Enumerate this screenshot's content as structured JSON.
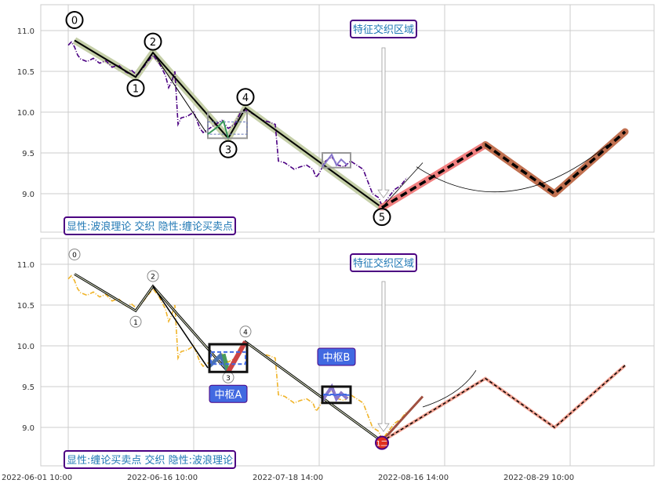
{
  "chart_data": [
    {
      "type": "line",
      "panel": "top",
      "ylim": [
        8.53,
        11.32
      ],
      "yticks": [
        9.0,
        9.5,
        10.0,
        10.5,
        11.0
      ],
      "grid": true,
      "price_color": "#4b0082",
      "price": {
        "x": [
          0,
          1,
          2,
          3,
          4,
          6,
          8,
          10,
          12,
          14,
          16,
          18,
          19,
          20,
          22,
          24,
          27,
          29,
          31,
          32,
          33,
          34,
          35,
          36,
          38,
          40,
          42,
          43,
          45,
          47,
          49,
          51,
          53,
          55,
          56,
          58,
          60,
          62,
          64,
          66,
          67,
          69,
          72,
          74,
          76,
          78,
          79,
          80,
          82,
          84,
          86,
          88,
          90,
          92,
          94,
          96,
          97,
          99,
          100,
          102,
          104,
          106,
          108
        ],
        "y": [
          10.82,
          10.86,
          10.8,
          10.7,
          10.65,
          10.62,
          10.66,
          10.6,
          10.63,
          10.55,
          10.58,
          10.5,
          10.48,
          10.52,
          10.45,
          10.55,
          10.7,
          10.6,
          10.45,
          10.3,
          10.38,
          10.5,
          9.85,
          9.93,
          9.95,
          10.0,
          9.8,
          9.75,
          9.8,
          9.85,
          9.9,
          9.8,
          9.85,
          10.0,
          10.03,
          10.0,
          9.95,
          9.9,
          9.88,
          9.85,
          9.4,
          9.38,
          9.3,
          9.33,
          9.35,
          9.3,
          9.2,
          9.25,
          9.4,
          9.45,
          9.35,
          9.33,
          9.4,
          9.35,
          9.3,
          9.1,
          9.0,
          8.95,
          8.85,
          8.95,
          9.05,
          9.1,
          9.2
        ]
      },
      "wave_points": [
        {
          "label": "0",
          "x": 2,
          "y": 10.88
        },
        {
          "label": "1",
          "x": 21.5,
          "y": 10.43
        },
        {
          "label": "2",
          "x": 27,
          "y": 10.73
        },
        {
          "label": "3",
          "x": 51,
          "y": 9.68
        },
        {
          "label": "4",
          "x": 56.5,
          "y": 10.05
        },
        {
          "label": "5",
          "x": 100,
          "y": 8.83
        }
      ],
      "projection": {
        "x": [
          100,
          133,
          155,
          177.5
        ],
        "y": [
          8.83,
          9.6,
          9.0,
          9.76
        ]
      },
      "annotation": "特征交织区域",
      "legend_box": "显性:波浪理论 交织 隐性:缠论买卖点"
    },
    {
      "type": "line",
      "panel": "bottom",
      "ylim": [
        8.53,
        11.32
      ],
      "yticks": [
        9.0,
        9.5,
        10.0,
        10.5,
        11.0
      ],
      "xticks": [
        "2022-06-01 10:00",
        "2022-06-16 10:00",
        "2022-07-18 14:00",
        "2022-08-16 14:00",
        "2022-08-29 10:00"
      ],
      "grid": true,
      "price_color": "#f0b429",
      "wave_points": [
        {
          "label": "0",
          "x": 2,
          "y": 10.88
        },
        {
          "label": "1",
          "x": 21.5,
          "y": 10.43
        },
        {
          "label": "2",
          "x": 27,
          "y": 10.73
        },
        {
          "label": "3",
          "x": 51,
          "y": 9.68
        },
        {
          "label": "4",
          "x": 56.5,
          "y": 10.05
        },
        {
          "label": "1二",
          "x": 100,
          "y": 8.83
        }
      ],
      "hubs": [
        {
          "label": "中枢A",
          "x0": 45,
          "x1": 57,
          "y0": 9.68,
          "y1": 10.02
        },
        {
          "label": "中枢B",
          "x0": 81,
          "x1": 90,
          "y0": 9.3,
          "y1": 9.5
        }
      ],
      "projection": {
        "x": [
          100,
          133,
          155,
          177.5
        ],
        "y": [
          8.83,
          9.6,
          9.0,
          9.76
        ]
      },
      "annotation": "特征交织区域",
      "legend_box": "显性:缠论买卖点 交织 隐性:波浪理论"
    }
  ],
  "colors": {
    "accent_box": "#4b0082",
    "annotation_text": "#1f77b4",
    "hub_label_bg": "#4169e1",
    "buy_point": "#e0301e",
    "projection_up": "#f08080",
    "projection_down": "#c07050"
  }
}
